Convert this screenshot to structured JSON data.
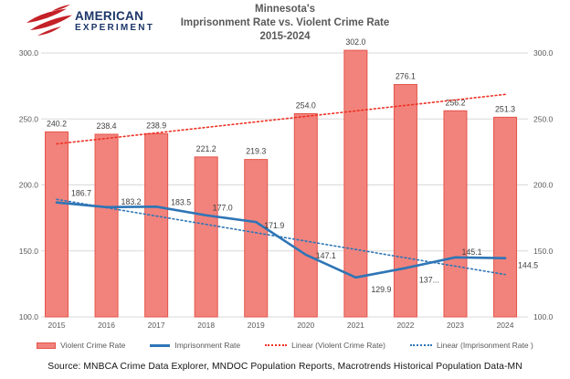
{
  "logo": {
    "line1": "AMERICAN",
    "line2": "EXPERIMENT"
  },
  "title": {
    "line1": "Minnesota's",
    "line2": "Imprisonment Rate vs. Violent Crime Rate",
    "line3": "2015-2024"
  },
  "source": "Source: MNBCA Crime Data Explorer, MNDOC Population Reports, Macrotrends Historical Population Data-MN",
  "legend": {
    "items": [
      {
        "label": "Violent Crime Rate",
        "swatch": "bar"
      },
      {
        "label": "Imprisonment Rate",
        "swatch": "solid-line"
      },
      {
        "label": "Linear (Violent Crime Rate)",
        "swatch": "dotted-line-red"
      },
      {
        "label": "Linear (Imprisonment Rate )",
        "swatch": "dotted-line-blue"
      }
    ]
  },
  "colors": {
    "bar_fill": "#f1837c",
    "bar_stroke": "#e4554a",
    "line_blue": "#2e75b6",
    "trend_red": "#ee3124",
    "trend_blue": "#2e75b6",
    "gridline": "#d9d9d9",
    "axis_text": "#595959",
    "data_label": "#404040",
    "logo_red": "#c42127",
    "logo_navy": "#1b3668",
    "title_text": "#595959"
  },
  "chart_data": {
    "type": "bar",
    "categories": [
      "2015",
      "2016",
      "2017",
      "2018",
      "2019",
      "2020",
      "2021",
      "2022",
      "2023",
      "2024"
    ],
    "series": [
      {
        "name": "Violent Crime Rate",
        "type": "bar",
        "values": [
          240.2,
          238.4,
          238.9,
          221.2,
          219.3,
          254.0,
          302.0,
          276.1,
          256.2,
          251.3
        ],
        "labels": [
          "240.2",
          "238.4",
          "238.9",
          "221.2",
          "219.3",
          "254.0",
          "302.0",
          "276.1",
          "256.2",
          "251.3"
        ]
      },
      {
        "name": "Imprisonment Rate",
        "type": "line",
        "values": [
          186.7,
          183.2,
          183.5,
          177.0,
          171.9,
          147.1,
          129.9,
          137.0,
          145.1,
          144.5
        ],
        "labels": [
          "186.7",
          "183.2",
          "183.5",
          "177.0",
          "171.9",
          "147.1",
          "129.9",
          "137...",
          "145.1",
          "144.5"
        ]
      },
      {
        "name": "Linear (Violent Crime Rate)",
        "type": "trend",
        "endpoints": [
          231.1,
          268.6
        ]
      },
      {
        "name": "Linear (Imprisonment Rate )",
        "type": "trend",
        "endpoints": [
          189.1,
          132.1
        ]
      }
    ],
    "title": "Minnesota's Imprisonment Rate vs. Violent Crime Rate 2015-2024",
    "xlabel": "",
    "ylabel": "",
    "ylim": [
      100,
      300
    ],
    "yticks": [
      "100.0",
      "150.0",
      "200.0",
      "250.0",
      "300.0"
    ],
    "grid": true,
    "dual_axis_labels": true,
    "legend_position": "bottom"
  }
}
